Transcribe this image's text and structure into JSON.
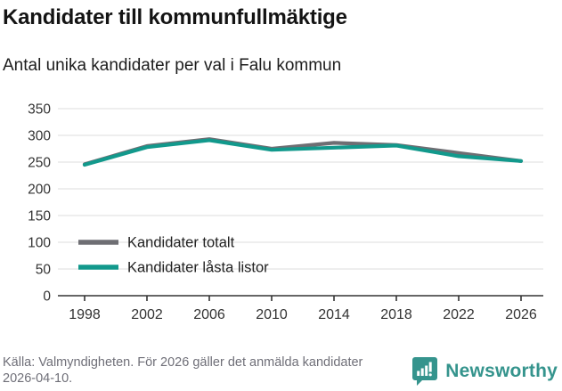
{
  "chart_data": {
    "type": "line",
    "title": "Kandidater till kommunfullmäktige",
    "subtitle": "Antal unika kandidater per val i Falu kommun",
    "categories": [
      "1998",
      "2002",
      "2006",
      "2010",
      "2014",
      "2018",
      "2022",
      "2026"
    ],
    "series": [
      {
        "name": "Kandidater totalt",
        "color": "#6e6e73",
        "values": [
          246,
          280,
          293,
          275,
          286,
          282,
          267,
          252
        ]
      },
      {
        "name": "Kandidater låsta listor",
        "color": "#12998c",
        "values": [
          245,
          278,
          291,
          273,
          277,
          281,
          261,
          252
        ]
      }
    ],
    "ylim": [
      0,
      350
    ],
    "yticks": [
      0,
      50,
      100,
      150,
      200,
      250,
      300,
      350
    ],
    "grid": true,
    "legend_position": "inside-bottom-left",
    "xlabel": "",
    "ylabel": ""
  },
  "footer": {
    "source": "Källa: Valmyndigheten. För 2026 gäller det anmälda kandidater 2026-04-10.",
    "brand": "Newsworthy"
  },
  "colors": {
    "grid": "#e3e3e3",
    "axis": "#333333",
    "tick_label": "#333333",
    "brand_teal": "#35948d"
  }
}
